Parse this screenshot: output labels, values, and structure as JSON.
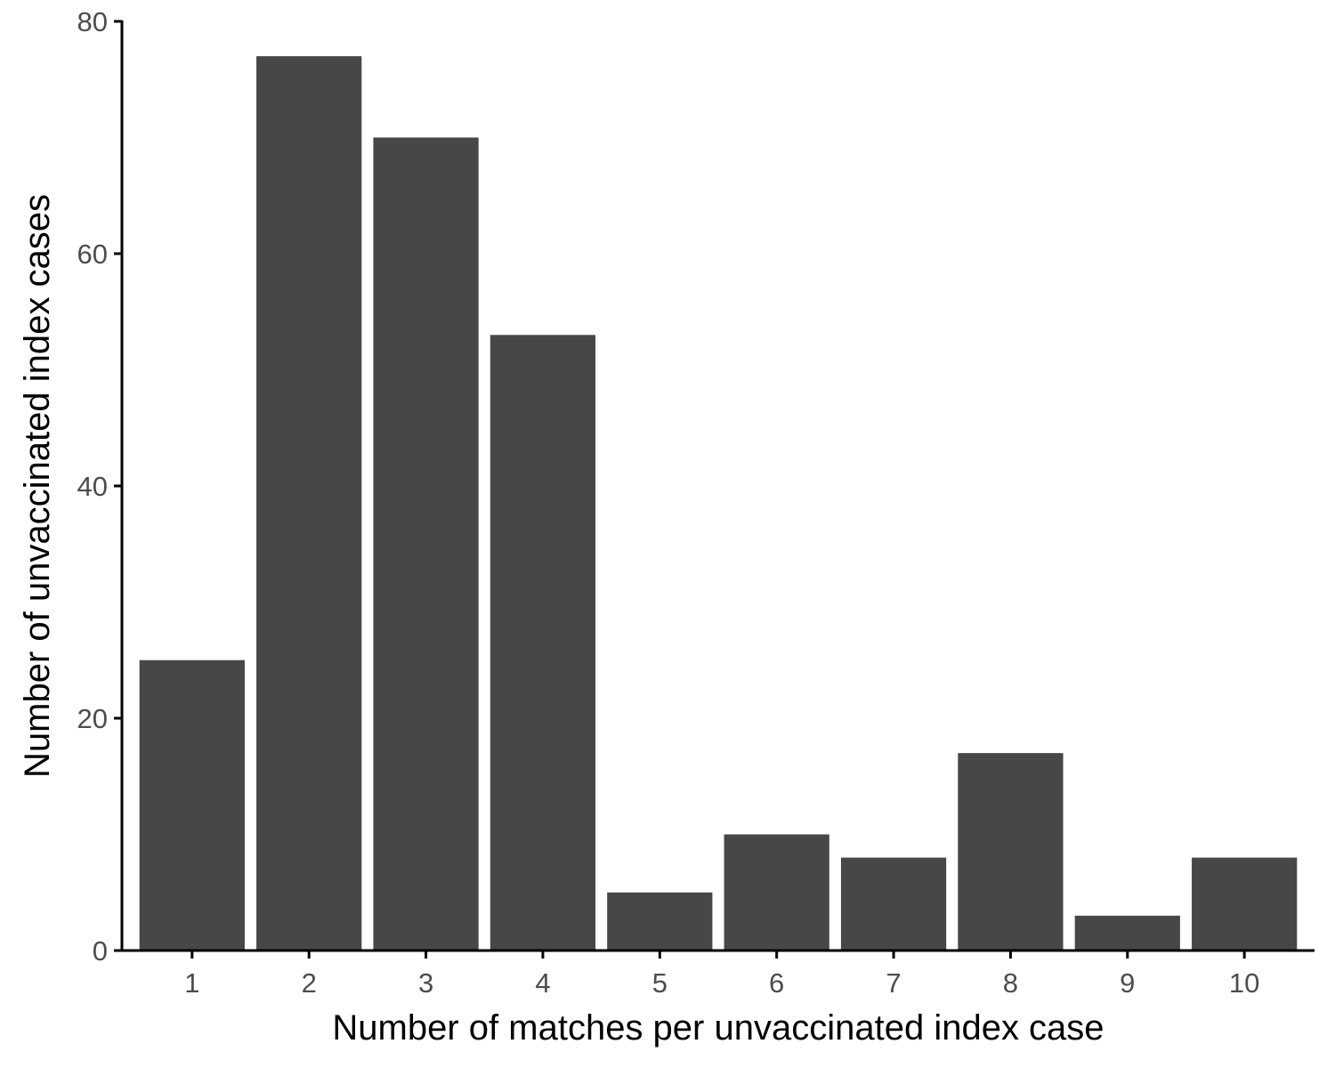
{
  "chart_data": {
    "type": "bar",
    "title": "",
    "xlabel": "Number of matches per unvaccinated index case",
    "ylabel": "Number of unvaccinated index cases",
    "categories": [
      "1",
      "2",
      "3",
      "4",
      "5",
      "6",
      "7",
      "8",
      "9",
      "10"
    ],
    "values": [
      25,
      77,
      70,
      53,
      5,
      10,
      8,
      17,
      3,
      8
    ],
    "ylim": [
      0,
      80
    ],
    "yticks": [
      0,
      20,
      40,
      60,
      80
    ],
    "grid": false,
    "legend": "none",
    "bar_color": "#474747",
    "axis_color": "#000000"
  }
}
